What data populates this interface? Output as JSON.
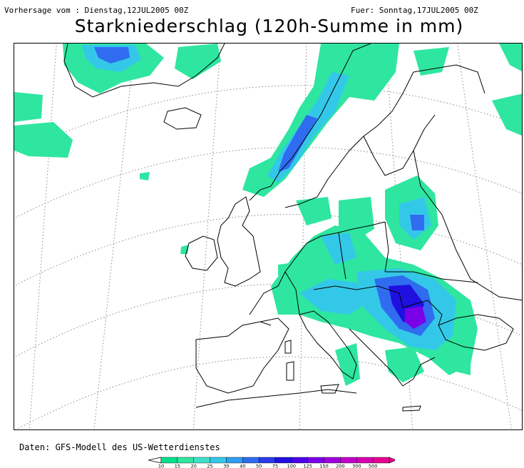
{
  "header": {
    "left": "Vorhersage vom : Dienstag,12JUL2005 00Z",
    "right": "Fuer: Sonntag,17JUL2005 00Z",
    "title": "Starkniederschlag (120h-Summe in mm)"
  },
  "footer": {
    "source": "Daten: GFS-Modell des US-Wetterdienstes"
  },
  "legend": {
    "levels": [
      {
        "label": "10",
        "color": "#00e08a"
      },
      {
        "label": "15",
        "color": "#2ee6a0"
      },
      {
        "label": "20",
        "color": "#40e0c8"
      },
      {
        "label": "25",
        "color": "#34c8e8"
      },
      {
        "label": "30",
        "color": "#2f9ef0"
      },
      {
        "label": "40",
        "color": "#2f6cf0"
      },
      {
        "label": "50",
        "color": "#2a3ae8"
      },
      {
        "label": "75",
        "color": "#2010e0"
      },
      {
        "label": "100",
        "color": "#4a00e6"
      },
      {
        "label": "125",
        "color": "#7a00e8"
      },
      {
        "label": "150",
        "color": "#a000e0"
      },
      {
        "label": "200",
        "color": "#c000c8"
      },
      {
        "label": "300",
        "color": "#d800b0"
      },
      {
        "label": "500",
        "color": "#e8008e"
      }
    ]
  },
  "map": {
    "colors": {
      "land_outline": "#000000",
      "graticule": "#888888",
      "light": "#2ee6a0",
      "mid": "#34c8e8",
      "high": "#2f6cf0",
      "max": "#2010e0",
      "extreme": "#7a00e8"
    }
  }
}
